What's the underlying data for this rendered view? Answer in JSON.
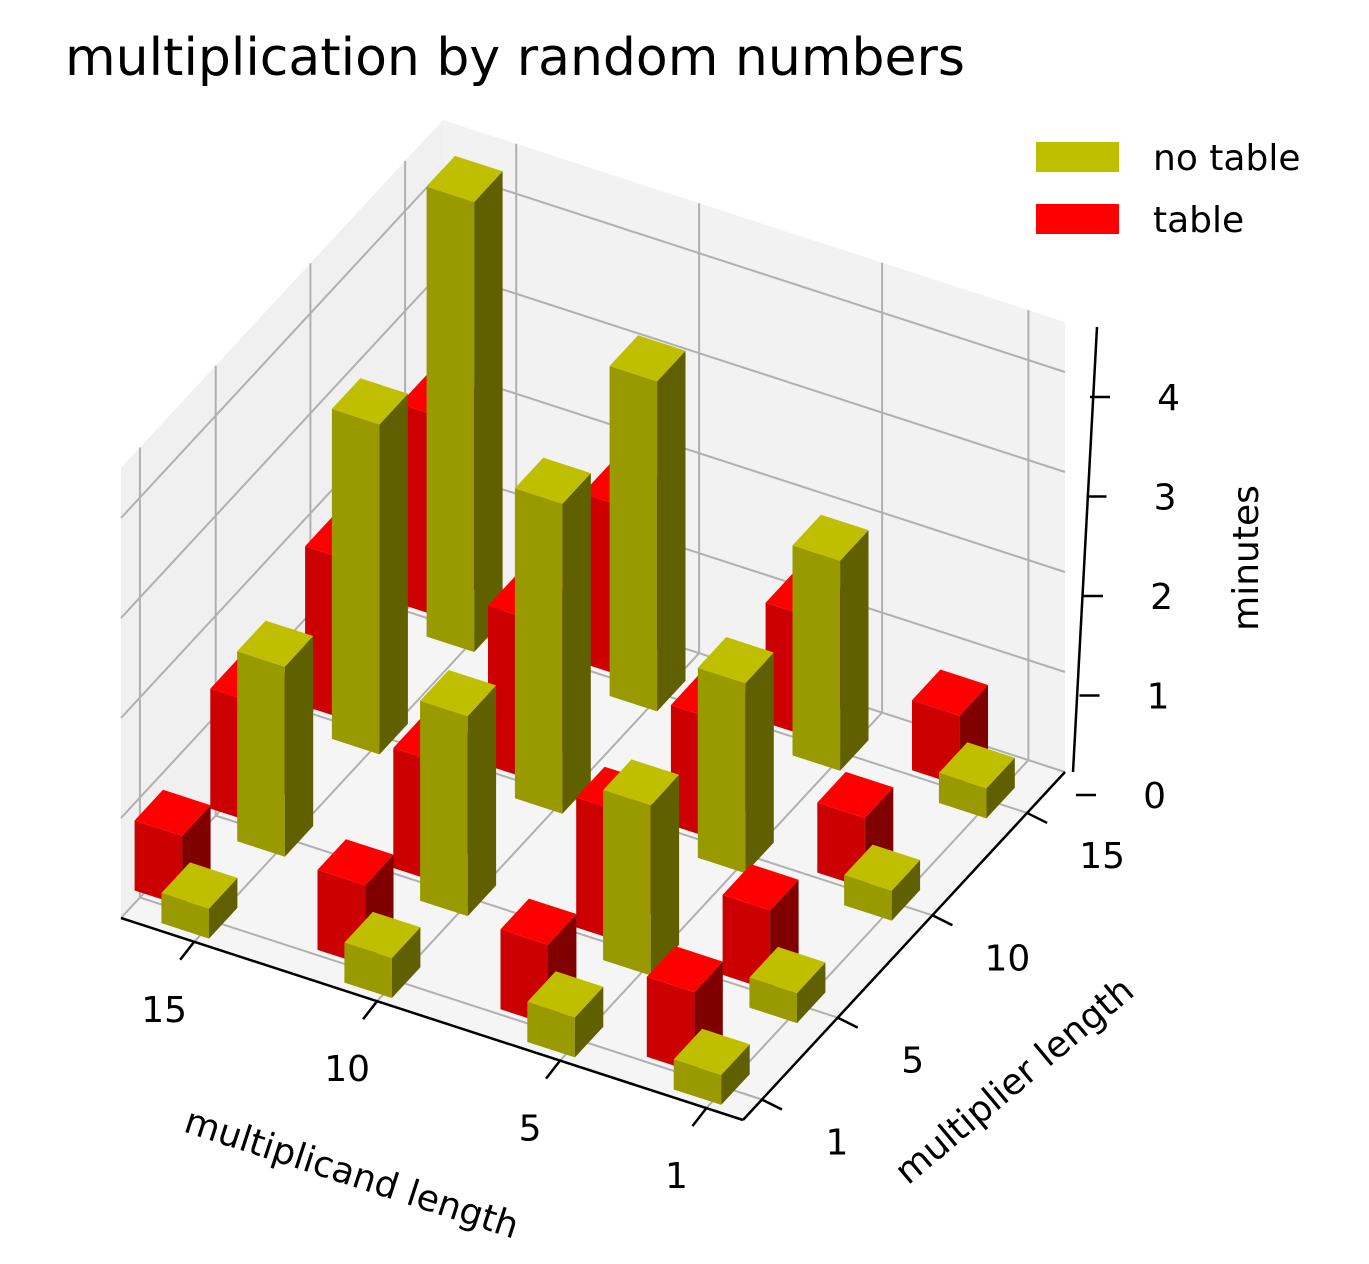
{
  "chart_data": {
    "type": "bar3d",
    "title": "multiplication by random numbers",
    "xlabel": "multiplicand length",
    "ylabel": "multiplier length",
    "zlabel": "minutes",
    "x_ticks": [
      "1",
      "5",
      "10",
      "15"
    ],
    "y_ticks": [
      "1",
      "5",
      "10",
      "15"
    ],
    "z_ticks": [
      "0",
      "1",
      "2",
      "3",
      "4"
    ],
    "zlim": [
      0,
      4.5
    ],
    "grid": true,
    "legend_position": "top-right",
    "series": [
      {
        "name": "no table",
        "color": "#bfbf00",
        "points": [
          {
            "x": 1,
            "y": 1,
            "z": 0.3
          },
          {
            "x": 1,
            "y": 5,
            "z": 0.3
          },
          {
            "x": 1,
            "y": 10,
            "z": 0.3
          },
          {
            "x": 1,
            "y": 15,
            "z": 0.3
          },
          {
            "x": 5,
            "y": 1,
            "z": 0.4
          },
          {
            "x": 5,
            "y": 5,
            "z": 1.7
          },
          {
            "x": 5,
            "y": 10,
            "z": 1.9
          },
          {
            "x": 5,
            "y": 15,
            "z": 2.1
          },
          {
            "x": 10,
            "y": 1,
            "z": 0.4
          },
          {
            "x": 10,
            "y": 5,
            "z": 2.0
          },
          {
            "x": 10,
            "y": 10,
            "z": 3.1
          },
          {
            "x": 10,
            "y": 15,
            "z": 3.3
          },
          {
            "x": 15,
            "y": 1,
            "z": 0.3
          },
          {
            "x": 15,
            "y": 5,
            "z": 1.9
          },
          {
            "x": 15,
            "y": 10,
            "z": 3.3
          },
          {
            "x": 15,
            "y": 15,
            "z": 4.5
          }
        ]
      },
      {
        "name": "table",
        "color": "#ff0000",
        "points": [
          {
            "x": 1,
            "y": 1,
            "z": 0.8
          },
          {
            "x": 1,
            "y": 5,
            "z": 0.8
          },
          {
            "x": 1,
            "y": 10,
            "z": 0.7
          },
          {
            "x": 1,
            "y": 15,
            "z": 0.7
          },
          {
            "x": 5,
            "y": 1,
            "z": 0.8
          },
          {
            "x": 5,
            "y": 5,
            "z": 1.3
          },
          {
            "x": 5,
            "y": 10,
            "z": 1.2
          },
          {
            "x": 5,
            "y": 15,
            "z": 1.2
          },
          {
            "x": 10,
            "y": 1,
            "z": 0.8
          },
          {
            "x": 10,
            "y": 5,
            "z": 1.2
          },
          {
            "x": 10,
            "y": 10,
            "z": 1.6
          },
          {
            "x": 10,
            "y": 15,
            "z": 1.7
          },
          {
            "x": 15,
            "y": 1,
            "z": 0.7
          },
          {
            "x": 15,
            "y": 5,
            "z": 1.2
          },
          {
            "x": 15,
            "y": 10,
            "z": 1.6
          },
          {
            "x": 15,
            "y": 15,
            "z": 2.0
          }
        ]
      }
    ]
  }
}
